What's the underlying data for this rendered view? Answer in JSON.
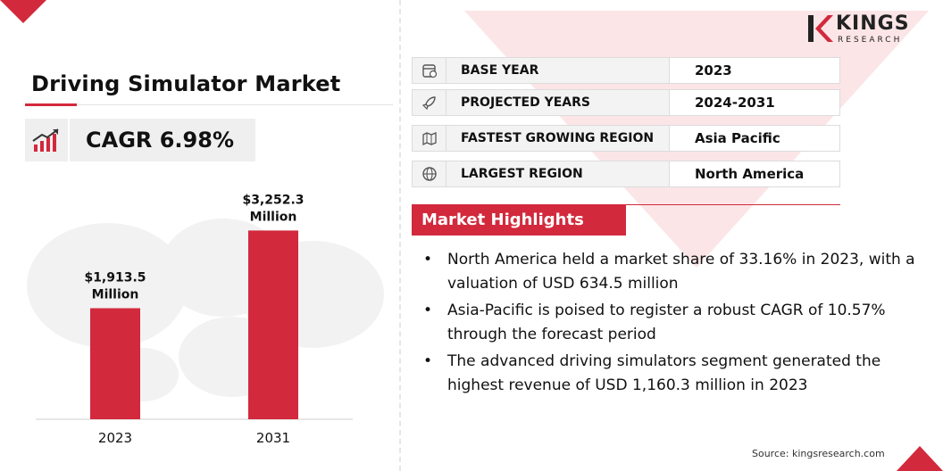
{
  "title": "Driving Simulator Market",
  "cagr": "CAGR 6.98%",
  "brand": {
    "name": "KINGS",
    "sub": "RESEARCH",
    "accent": "#d22a3c"
  },
  "info_rows": [
    {
      "icon": "calendar-icon",
      "label": "BASE YEAR",
      "value": "2023"
    },
    {
      "icon": "rocket-icon",
      "label": "PROJECTED YEARS",
      "value": "2024-2031"
    },
    {
      "icon": "region-map-icon",
      "label": "FASTEST GROWING REGION",
      "value": "Asia Pacific"
    },
    {
      "icon": "globe-icon",
      "label": "LARGEST REGION",
      "value": "North America"
    }
  ],
  "highlights": {
    "header": "Market Highlights",
    "items": [
      "North America held a market share of 33.16% in 2023, with a valuation of USD 634.5 million",
      "Asia-Pacific is poised to register a robust CAGR of 10.57% through the forecast period",
      "The advanced driving simulators segment generated the highest revenue of USD 1,160.3 million in 2023"
    ]
  },
  "source": "Source: kingsresearch.com",
  "chart_data": {
    "type": "bar",
    "categories": [
      "2023",
      "2031"
    ],
    "values": [
      1913.5,
      3252.3
    ],
    "data_labels": [
      "$1,913.5\nMillion",
      "$3,252.3\nMillion"
    ],
    "color": "#d22a3c",
    "ylim": [
      0,
      4150
    ],
    "grid": false,
    "legend": "none"
  }
}
